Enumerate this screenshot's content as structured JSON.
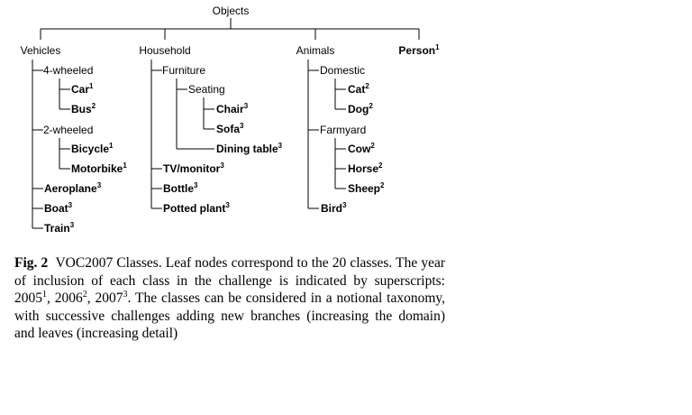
{
  "tree": {
    "root": "Objects",
    "categories": {
      "vehicles": "Vehicles",
      "household": "Household",
      "animals": "Animals",
      "person": "Person",
      "person_sup": "1"
    },
    "groups": {
      "four_wheeled": "4-wheeled",
      "two_wheeled": "2-wheeled",
      "furniture": "Furniture",
      "seating": "Seating",
      "domestic": "Domestic",
      "farmyard": "Farmyard"
    },
    "leaves": {
      "car": "Car",
      "car_sup": "1",
      "bus": "Bus",
      "bus_sup": "2",
      "bicycle": "Bicycle",
      "bicycle_sup": "1",
      "motorbike": "Motorbike",
      "motorbike_sup": "1",
      "aeroplane": "Aeroplane",
      "aeroplane_sup": "3",
      "boat": "Boat",
      "boat_sup": "3",
      "train": "Train",
      "train_sup": "3",
      "chair": "Chair",
      "chair_sup": "3",
      "sofa": "Sofa",
      "sofa_sup": "3",
      "dining_table": "Dining table",
      "dining_table_sup": "3",
      "tv_monitor": "TV/monitor",
      "tv_monitor_sup": "3",
      "bottle": "Bottle",
      "bottle_sup": "3",
      "potted_plant": "Potted plant",
      "potted_plant_sup": "3",
      "cat": "Cat",
      "cat_sup": "2",
      "dog": "Dog",
      "dog_sup": "2",
      "cow": "Cow",
      "cow_sup": "2",
      "horse": "Horse",
      "horse_sup": "2",
      "sheep": "Sheep",
      "sheep_sup": "2",
      "bird": "Bird",
      "bird_sup": "3"
    }
  },
  "caption": {
    "label": "Fig. 2",
    "text_1": "VOC2007 Classes. Leaf nodes correspond to the 20 classes. The year of inclusion of each class in the challenge is indicated by superscripts: 2005",
    "sup_1": "1",
    "text_2": ", 2006",
    "sup_2": "2",
    "text_3": ", 2007",
    "sup_3": "3",
    "text_4": ". The classes can be considered in a notional taxonomy, with successive challenges adding new branches (increasing the domain) and leaves (increasing detail)"
  }
}
